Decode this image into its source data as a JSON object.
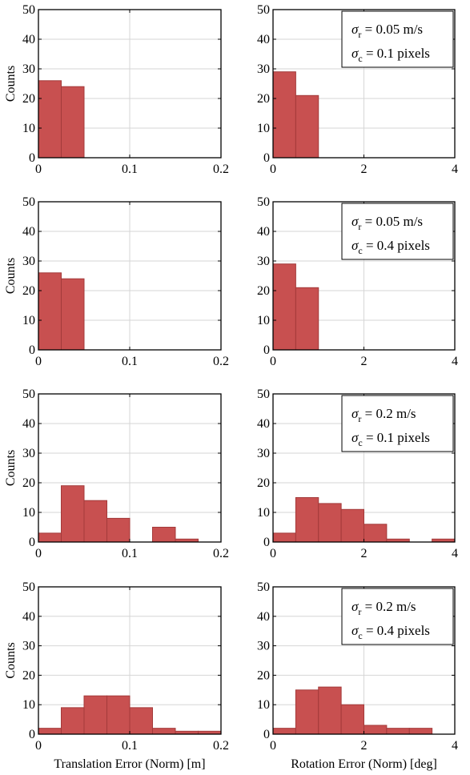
{
  "colors": {
    "bar_fill": "#c85050",
    "bar_edge": "#a33a3a",
    "grid": "#d6d6d6",
    "axis": "#000000"
  },
  "chart_data": [
    {
      "type": "bar",
      "panel": "translation-1",
      "xlabel": "",
      "ylabel": "Counts",
      "xlim": [
        0,
        0.2
      ],
      "ylim": [
        0,
        50
      ],
      "xticks": [
        "0",
        "0.1",
        "0.2"
      ],
      "yticks": [
        "0",
        "10",
        "20",
        "30",
        "40",
        "50"
      ],
      "grid": true,
      "bin_width": 0.025,
      "bin_starts": [
        0,
        0.025
      ],
      "values": [
        26,
        24
      ],
      "legend": null
    },
    {
      "type": "bar",
      "panel": "rotation-1",
      "xlabel": "",
      "ylabel": "",
      "xlim": [
        0,
        4
      ],
      "ylim": [
        0,
        50
      ],
      "xticks": [
        "0",
        "2",
        "4"
      ],
      "yticks": [
        "0",
        "10",
        "20",
        "30",
        "40",
        "50"
      ],
      "grid": true,
      "bin_width": 0.5,
      "bin_starts": [
        0,
        0.5
      ],
      "values": [
        29,
        21
      ],
      "legend": {
        "placement": "top-right",
        "line1_sym": "σ",
        "line1_sub": "r",
        "line1_val": " = 0.05 m/s",
        "line2_sym": "σ",
        "line2_sub": "c",
        "line2_val": " = 0.1 pixels"
      }
    },
    {
      "type": "bar",
      "panel": "translation-2",
      "xlabel": "",
      "ylabel": "Counts",
      "xlim": [
        0,
        0.2
      ],
      "ylim": [
        0,
        50
      ],
      "xticks": [
        "0",
        "0.1",
        "0.2"
      ],
      "yticks": [
        "0",
        "10",
        "20",
        "30",
        "40",
        "50"
      ],
      "grid": true,
      "bin_width": 0.025,
      "bin_starts": [
        0,
        0.025
      ],
      "values": [
        26,
        24
      ],
      "legend": null
    },
    {
      "type": "bar",
      "panel": "rotation-2",
      "xlabel": "",
      "ylabel": "",
      "xlim": [
        0,
        4
      ],
      "ylim": [
        0,
        50
      ],
      "xticks": [
        "0",
        "2",
        "4"
      ],
      "yticks": [
        "0",
        "10",
        "20",
        "30",
        "40",
        "50"
      ],
      "grid": true,
      "bin_width": 0.5,
      "bin_starts": [
        0,
        0.5
      ],
      "values": [
        29,
        21
      ],
      "legend": {
        "placement": "top-right",
        "line1_sym": "σ",
        "line1_sub": "r",
        "line1_val": " = 0.05 m/s",
        "line2_sym": "σ",
        "line2_sub": "c",
        "line2_val": " = 0.4 pixels"
      }
    },
    {
      "type": "bar",
      "panel": "translation-3",
      "xlabel": "",
      "ylabel": "Counts",
      "xlim": [
        0,
        0.2
      ],
      "ylim": [
        0,
        50
      ],
      "xticks": [
        "0",
        "0.1",
        "0.2"
      ],
      "yticks": [
        "0",
        "10",
        "20",
        "30",
        "40",
        "50"
      ],
      "grid": true,
      "bin_width": 0.025,
      "bin_starts": [
        0,
        0.025,
        0.05,
        0.075,
        0.125,
        0.15
      ],
      "values": [
        3,
        19,
        14,
        8,
        5,
        1
      ],
      "legend": null
    },
    {
      "type": "bar",
      "panel": "rotation-3",
      "xlabel": "",
      "ylabel": "",
      "xlim": [
        0,
        4
      ],
      "ylim": [
        0,
        50
      ],
      "xticks": [
        "0",
        "2",
        "4"
      ],
      "yticks": [
        "0",
        "10",
        "20",
        "30",
        "40",
        "50"
      ],
      "grid": true,
      "bin_width": 0.5,
      "bin_starts": [
        0,
        0.5,
        1.0,
        1.5,
        2.0,
        2.5,
        3.5
      ],
      "values": [
        3,
        15,
        13,
        11,
        6,
        1,
        1
      ],
      "legend": {
        "placement": "top-right",
        "line1_sym": "σ",
        "line1_sub": "r",
        "line1_val": " = 0.2 m/s",
        "line2_sym": "σ",
        "line2_sub": "c",
        "line2_val": " = 0.1 pixels"
      }
    },
    {
      "type": "bar",
      "panel": "translation-4",
      "xlabel": "Translation Error (Norm) [m]",
      "ylabel": "Counts",
      "xlim": [
        0,
        0.2
      ],
      "ylim": [
        0,
        50
      ],
      "xticks": [
        "0",
        "0.1",
        "0.2"
      ],
      "yticks": [
        "0",
        "10",
        "20",
        "30",
        "40",
        "50"
      ],
      "grid": true,
      "bin_width": 0.025,
      "bin_starts": [
        0,
        0.025,
        0.05,
        0.075,
        0.1,
        0.125,
        0.15,
        0.175
      ],
      "values": [
        2,
        9,
        13,
        13,
        9,
        2,
        1,
        1
      ],
      "legend": null
    },
    {
      "type": "bar",
      "panel": "rotation-4",
      "xlabel": "Rotation Error (Norm) [deg]",
      "ylabel": "",
      "xlim": [
        0,
        4
      ],
      "ylim": [
        0,
        50
      ],
      "xticks": [
        "0",
        "2",
        "4"
      ],
      "yticks": [
        "0",
        "10",
        "20",
        "30",
        "40",
        "50"
      ],
      "grid": true,
      "bin_width": 0.5,
      "bin_starts": [
        0,
        0.5,
        1.0,
        1.5,
        2.0,
        2.5,
        3.0
      ],
      "values": [
        2,
        15,
        16,
        10,
        3,
        2,
        2
      ],
      "legend": {
        "placement": "top-right",
        "line1_sym": "σ",
        "line1_sub": "r",
        "line1_val": " = 0.2 m/s",
        "line2_sym": "σ",
        "line2_sub": "c",
        "line2_val": " = 0.4 pixels"
      }
    }
  ]
}
